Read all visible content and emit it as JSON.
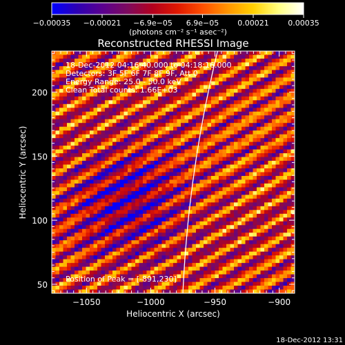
{
  "chart_data": {
    "type": "heatmap",
    "title": "Reconstructed RHESSI Image",
    "xlabel": "Heliocentric X (arcsec)",
    "ylabel": "Heliocentric Y (arcsec)",
    "xlim": [
      -1077,
      -888
    ],
    "ylim": [
      43,
      232
    ],
    "xticks": [
      -1050,
      -1000,
      -950,
      -900
    ],
    "yticks": [
      50,
      100,
      150,
      200
    ],
    "colorbar": {
      "min": -0.00035,
      "max": 0.00035,
      "ticks": [
        "-0.00035",
        "-0.00021",
        "-6.9e-05",
        "6.9e-05",
        "0.00021",
        "0.00035"
      ],
      "unit_label": "(photons cm⁻² s⁻¹ asec⁻²)",
      "stops": [
        "#0000ff",
        "#2d00b4",
        "#5a0090",
        "#7d0a5f",
        "#b3001e",
        "#e01800",
        "#ff5000",
        "#ff9600",
        "#ffd000",
        "#ffff80",
        "#ffffff"
      ]
    },
    "info_lines": [
      "18-Dec-2012 04:16:40.000 to 04:18:16.000",
      "Detectors: 3F 5F 6F 7F 8F 9F, Att 0",
      "Energy Range: 25.0 - 50.0 keV",
      "Clean    Total counts: 1.66E+03"
    ],
    "peak_label": "Position of Peak = [-891,230]",
    "peak": [
      -891,
      230
    ],
    "limb_color": "#ffffff",
    "footer_timestamp": "18-Dec-2012 13:31"
  }
}
